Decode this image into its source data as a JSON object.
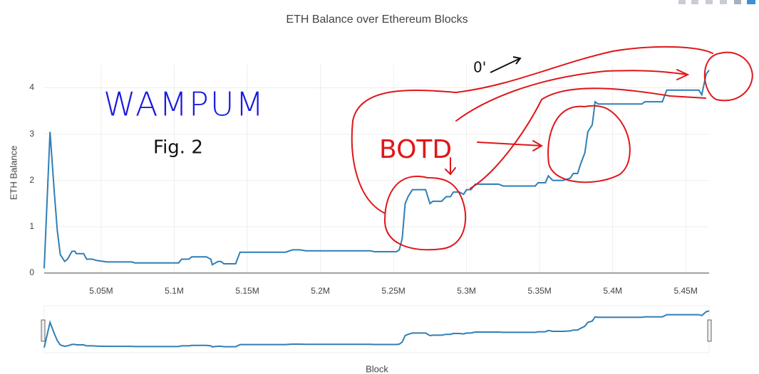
{
  "chart_data": {
    "type": "line",
    "title": "ETH Balance over Ethereum Blocks",
    "x_label": "Block",
    "y_label": "ETH Balance",
    "xlim": [
      5011000,
      5466000
    ],
    "xticks": [
      {
        "value": 5050000,
        "label": "5.05M"
      },
      {
        "value": 5100000,
        "label": "5.1M"
      },
      {
        "value": 5150000,
        "label": "5.15M"
      },
      {
        "value": 5200000,
        "label": "5.2M"
      },
      {
        "value": 5250000,
        "label": "5.25M"
      },
      {
        "value": 5300000,
        "label": "5.3M"
      },
      {
        "value": 5350000,
        "label": "5.35M"
      },
      {
        "value": 5400000,
        "label": "5.4M"
      },
      {
        "value": 5450000,
        "label": "5.45M"
      }
    ],
    "ylim": [
      0,
      4.5
    ],
    "yticks": [
      0,
      1,
      2,
      3,
      4
    ],
    "grid": true,
    "range_slider": true,
    "series": [
      {
        "color": "#2f7fb5",
        "x": [
          5011000,
          5015000,
          5018000,
          5020000,
          5022000,
          5025000,
          5027000,
          5030000,
          5032000,
          5033000,
          5038000,
          5040000,
          5044000,
          5047000,
          5054000,
          5071000,
          5073000,
          5103000,
          5105000,
          5110000,
          5112000,
          5122000,
          5125000,
          5126000,
          5130000,
          5132000,
          5134000,
          5142000,
          5145000,
          5176000,
          5181000,
          5186000,
          5190000,
          5234000,
          5237000,
          5252000,
          5254000,
          5256000,
          5258000,
          5260000,
          5263000,
          5272000,
          5275000,
          5277000,
          5283000,
          5286000,
          5289000,
          5291000,
          5295000,
          5298000,
          5300000,
          5303000,
          5306000,
          5322000,
          5325000,
          5347000,
          5349000,
          5354000,
          5356000,
          5359000,
          5366000,
          5371000,
          5373000,
          5376000,
          5378000,
          5381000,
          5383000,
          5386000,
          5388000,
          5390000,
          5420000,
          5422000,
          5434000,
          5437000,
          5459000,
          5461000,
          5464000,
          5466000
        ],
        "values": [
          0.1,
          3.05,
          1.7,
          0.9,
          0.4,
          0.25,
          0.3,
          0.47,
          0.47,
          0.42,
          0.42,
          0.3,
          0.3,
          0.27,
          0.24,
          0.24,
          0.22,
          0.22,
          0.3,
          0.3,
          0.35,
          0.35,
          0.3,
          0.18,
          0.25,
          0.25,
          0.2,
          0.2,
          0.45,
          0.45,
          0.5,
          0.5,
          0.48,
          0.48,
          0.46,
          0.46,
          0.5,
          0.75,
          1.5,
          1.65,
          1.8,
          1.8,
          1.5,
          1.55,
          1.55,
          1.65,
          1.65,
          1.75,
          1.75,
          1.7,
          1.8,
          1.8,
          1.92,
          1.92,
          1.88,
          1.88,
          1.95,
          1.95,
          2.1,
          2.0,
          2.0,
          2.05,
          2.15,
          2.15,
          2.35,
          2.6,
          3.05,
          3.2,
          3.7,
          3.65,
          3.65,
          3.7,
          3.7,
          3.95,
          3.95,
          3.85,
          4.3,
          4.38
        ]
      }
    ],
    "annotations": [
      {
        "text": "WAMPUM",
        "color": "#1a1adf"
      },
      {
        "text": "Fig. 2",
        "color": "#111111"
      },
      {
        "text": "BOTD",
        "color": "#e0161a"
      },
      {
        "text": "0'",
        "color": "#111111"
      }
    ]
  }
}
